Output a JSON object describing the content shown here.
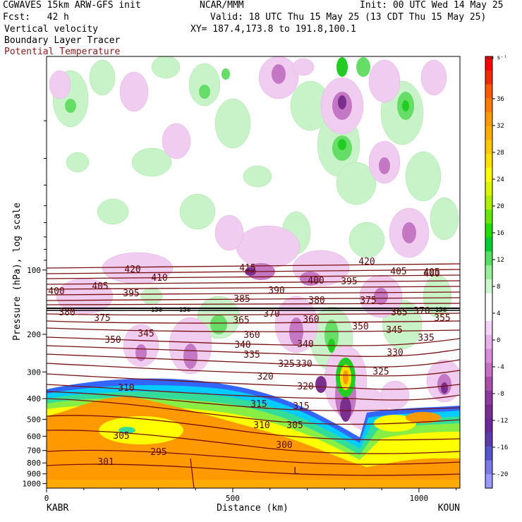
{
  "header": {
    "left": [
      "CGWAVES 15km ARW-GFS init",
      "Fcst:   42 h",
      "Vertical velocity",
      "Boundary Layer Tracer",
      "Potential Temperature"
    ],
    "center": [
      "NCAR/MMM",
      "Valid: 18 UTC Thu 15 May 25 (13 CDT Thu 15 May 25)",
      "XY= 187.4,173.8 to 191.8,100.1"
    ],
    "init": "Init: 00 UTC Wed 14 May 25",
    "potential_temp_color": "#8b1a1a"
  },
  "chart_data": {
    "type": "heatmap",
    "title": "Vertical velocity",
    "ylabel": "Pressure (hPa), log scale",
    "xlabel": "Distance (km)",
    "x_ticks": [
      "0",
      "500",
      "1000"
    ],
    "x_endpoints": [
      "KABR",
      "KOUN"
    ],
    "y_ticks": [
      "100",
      "200",
      "300",
      "400",
      "500",
      "600",
      "700",
      "800",
      "900",
      "1000"
    ],
    "colorbar": {
      "units": "cm s⁻¹",
      "ticks": [
        "36",
        "32",
        "28",
        "24",
        "20",
        "16",
        "12",
        "8",
        "4",
        "0",
        "-4",
        "-8",
        "-12",
        "-16",
        "-20"
      ],
      "colors": [
        "#ff0000",
        "#ee2a00",
        "#ff5a00",
        "#ff7a00",
        "#ff9900",
        "#ffae00",
        "#ffc800",
        "#ffe000",
        "#ffff00",
        "#d9f500",
        "#aef000",
        "#66e600",
        "#22dd00",
        "#00cc33",
        "#55dd66",
        "#99ee99",
        "#ccf5cc",
        "#ffffff",
        "#ffffff",
        "#f5d3f5",
        "#e8b0e8",
        "#d98dd9",
        "#c470c4",
        "#a94ea9",
        "#8e3a9e",
        "#7a2e8e",
        "#6a2a99",
        "#5e3aaa",
        "#5555cc",
        "#7a7ae6",
        "#9999ff"
      ]
    },
    "isentrope_labels": [
      "420",
      "415",
      "420",
      "410",
      "405",
      "400",
      "405",
      "395",
      "390",
      "400",
      "395",
      "405",
      "400",
      "380",
      "375",
      "385",
      "370",
      "380",
      "375",
      "365",
      "370",
      "360",
      "365",
      "355",
      "350",
      "360",
      "350",
      "345",
      "340",
      "345",
      "335",
      "340",
      "335",
      "330",
      "325",
      "330",
      "325",
      "320",
      "320",
      "315",
      "315",
      "310",
      "310",
      "305",
      "305",
      "300",
      "295",
      "301"
    ],
    "tropopause_labels": [
      "150",
      "150",
      "150"
    ],
    "low_marker": "L"
  }
}
